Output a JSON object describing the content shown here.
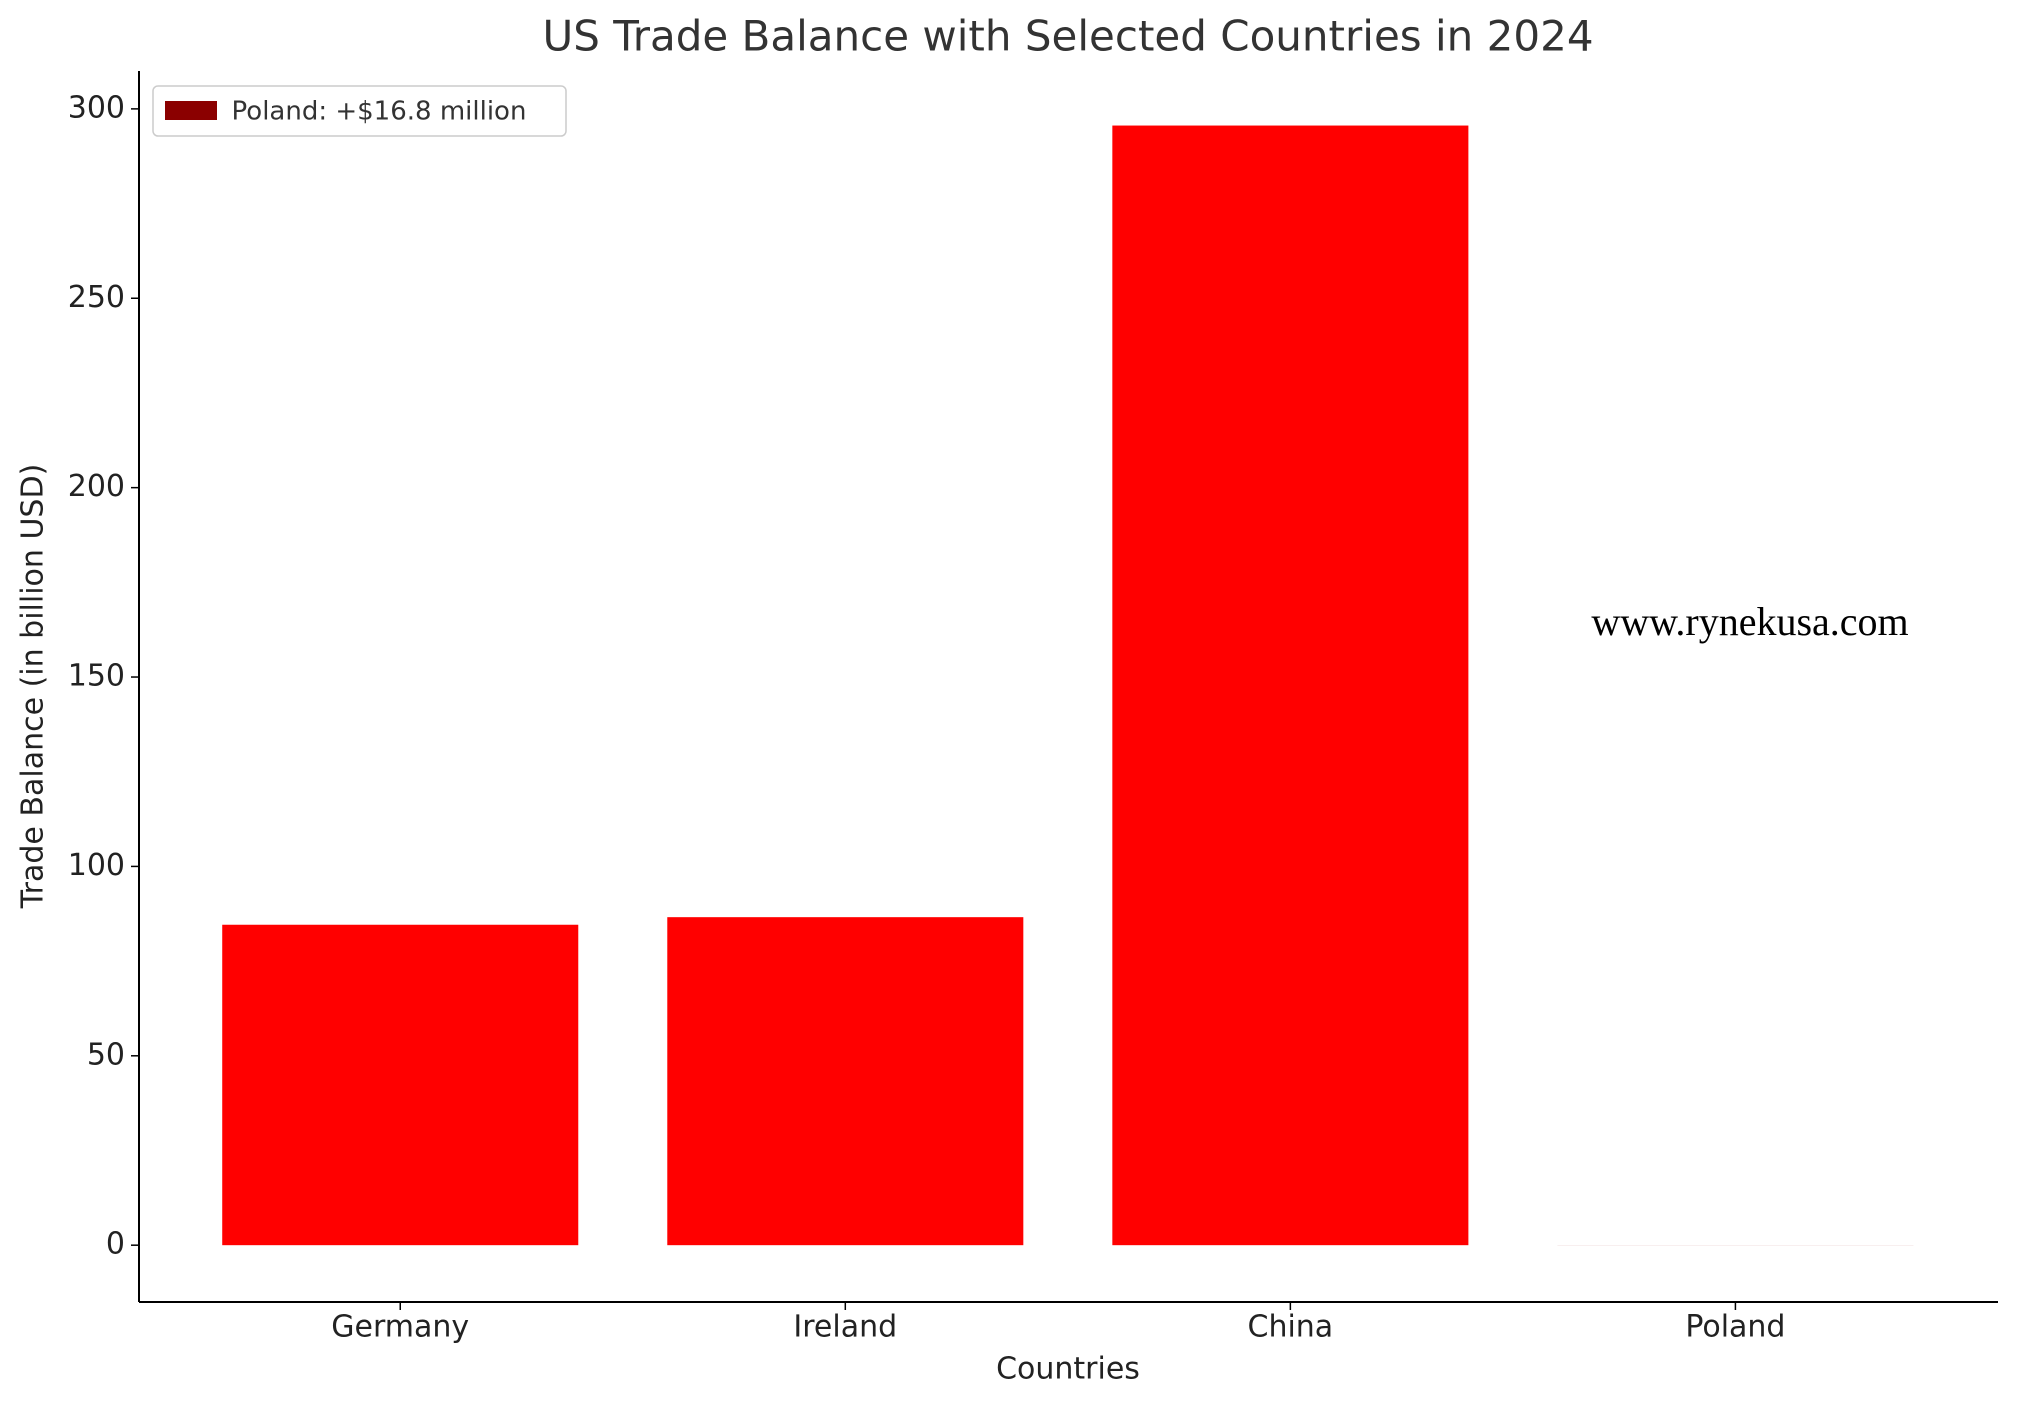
{
  "chart_data": {
    "type": "bar",
    "title": "US Trade Balance with Selected Countries in 2024",
    "x_label": "Countries",
    "y_label": "Trade Balance (in billion USD)",
    "categories": [
      "Germany",
      "Ireland",
      "China",
      "Poland"
    ],
    "values": [
      84.6,
      86.6,
      295.6,
      0.0168
    ],
    "colors": [
      "#ff0000",
      "#ff0000",
      "#ff0000",
      "#8b0000"
    ],
    "ylim": [
      -15,
      310
    ],
    "yticks": [
      0,
      50,
      100,
      150,
      200,
      250,
      300
    ],
    "grid": false,
    "legend": {
      "label": "Poland: +$16.8 million",
      "color": "#8b0000",
      "position": "upper left"
    },
    "watermark": "www.rynekusa.com"
  }
}
